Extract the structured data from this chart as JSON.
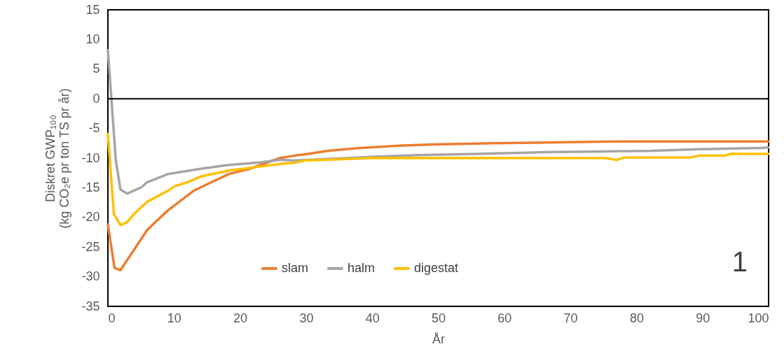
{
  "chart_data": {
    "type": "line",
    "xlabel": "År",
    "ylabel": "Diskret GWP₁₀₀\n(kg CO₂e pr ton TS pr år)",
    "xlim": [
      0,
      100
    ],
    "xticks": [
      0,
      10,
      20,
      30,
      40,
      50,
      60,
      70,
      80,
      90,
      100
    ],
    "ylim": [
      -35,
      15
    ],
    "yticks": [
      -35,
      -30,
      -25,
      -20,
      -15,
      -10,
      -5,
      0,
      5,
      10,
      15
    ],
    "grid": false,
    "legend": "bottom",
    "marker": "none",
    "line_style": "solid",
    "ref_lines": [
      {
        "axis": "y",
        "value": 0,
        "color": "#000000"
      }
    ],
    "annotations": [
      "1"
    ],
    "series": [
      {
        "name": "slam",
        "color": "#ed7d31",
        "x": [
          0,
          1,
          1.9,
          5.9,
          7,
          9.1,
          13,
          14.1,
          18.3,
          21.5,
          26,
          28.2,
          30.3,
          33.2,
          37,
          44.1,
          49.3,
          58.3,
          77.2,
          100
        ],
        "values": [
          -21.2,
          -28.5,
          -28.9,
          -22.2,
          -21.0,
          -18.8,
          -15.5,
          -14.9,
          -12.7,
          -11.8,
          -10.0,
          -9.6,
          -9.3,
          -8.8,
          -8.4,
          -7.9,
          -7.7,
          -7.5,
          -7.2,
          -7.2
        ]
      },
      {
        "name": "halm",
        "color": "#a5a5a5",
        "x": [
          0,
          1.2,
          1.9,
          2.9,
          5.1,
          5.9,
          9.1,
          14.1,
          17.9,
          23.2,
          26,
          28.2,
          39.8,
          46.9,
          55.9,
          66.3,
          82,
          89.7,
          98.9,
          100
        ],
        "values": [
          8.2,
          -10.4,
          -15.3,
          -16.0,
          -14.9,
          -14.1,
          -12.7,
          -11.8,
          -11.2,
          -10.7,
          -10.3,
          -10.4,
          -9.8,
          -9.5,
          -9.3,
          -9.0,
          -8.8,
          -8.5,
          -8.3,
          -8.2
        ]
      },
      {
        "name": "digestat",
        "color": "#ffc000",
        "x": [
          0,
          0.9,
          1.9,
          2.9,
          4,
          5.9,
          9.1,
          10.2,
          12,
          14.1,
          18.3,
          23.3,
          26,
          28.2,
          29.9,
          39.8,
          75.3,
          77,
          78.2,
          88.1,
          89.5,
          93.3,
          94.3,
          100
        ],
        "values": [
          -5.9,
          -19.4,
          -21.3,
          -20.8,
          -19.4,
          -17.4,
          -15.5,
          -14.7,
          -14.1,
          -13.1,
          -12.1,
          -11.4,
          -11.0,
          -10.8,
          -10.4,
          -10.0,
          -10.0,
          -10.3,
          -9.9,
          -9.9,
          -9.6,
          -9.6,
          -9.3,
          -9.3
        ]
      }
    ]
  }
}
